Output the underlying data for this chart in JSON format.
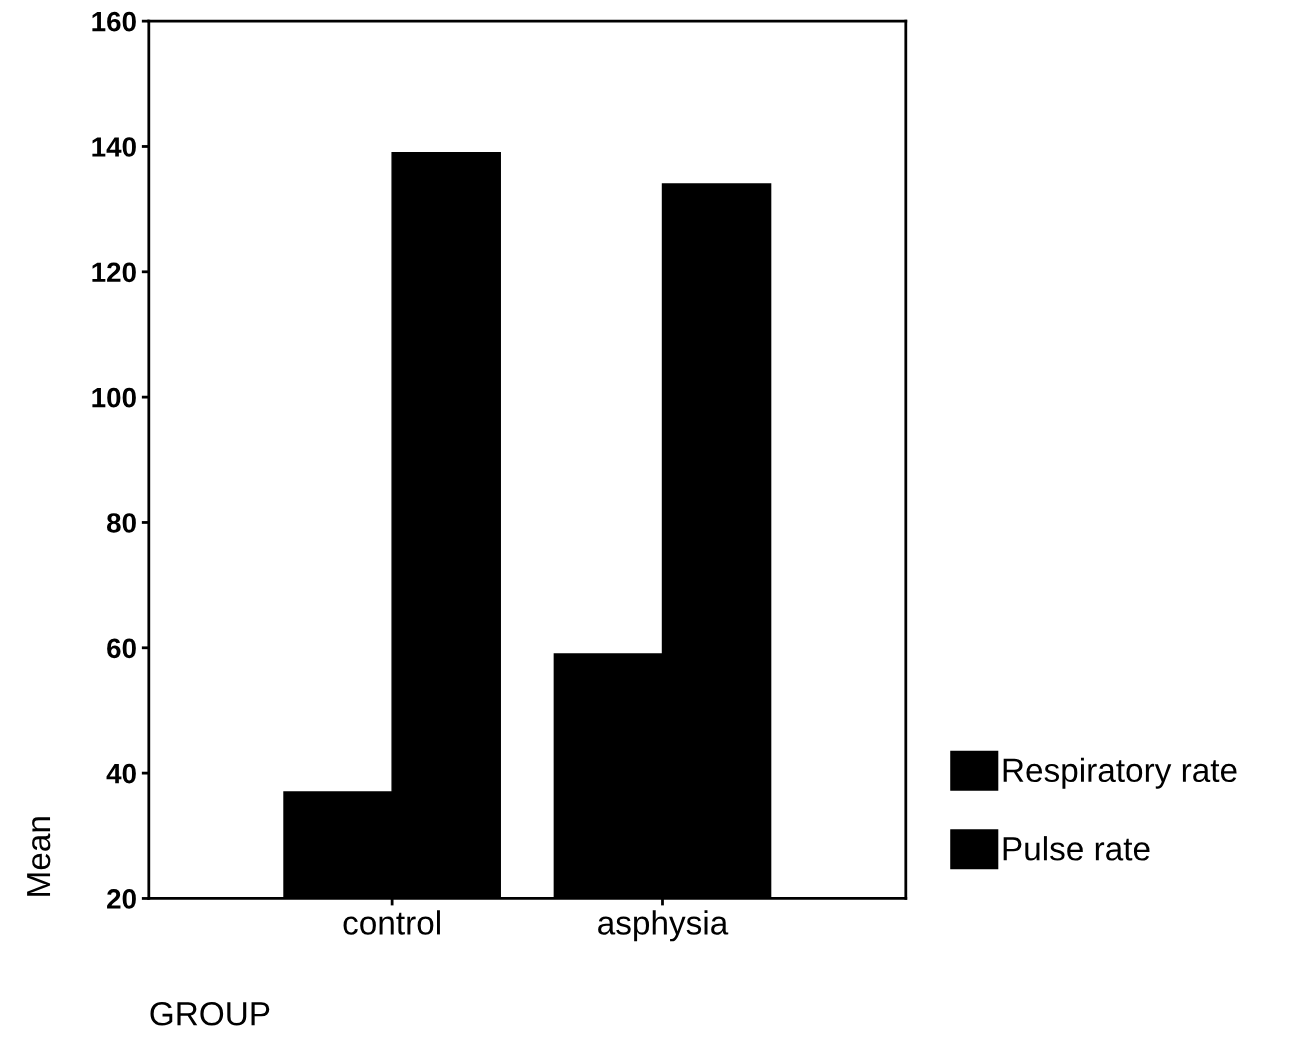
{
  "chart_data": {
    "type": "bar",
    "xlabel": "GROUP",
    "ylabel": "Mean",
    "categories": [
      "control",
      "asphysia"
    ],
    "series": [
      {
        "name": "Respiratory rate",
        "color": "#000000",
        "values": [
          37,
          59
        ]
      },
      {
        "name": "Pulse rate",
        "color": "#000000",
        "values": [
          139,
          134
        ]
      }
    ],
    "ylim": [
      20,
      160
    ],
    "yticks": [
      20,
      40,
      60,
      80,
      100,
      120,
      140,
      160
    ],
    "grid": false,
    "legend": "right"
  }
}
